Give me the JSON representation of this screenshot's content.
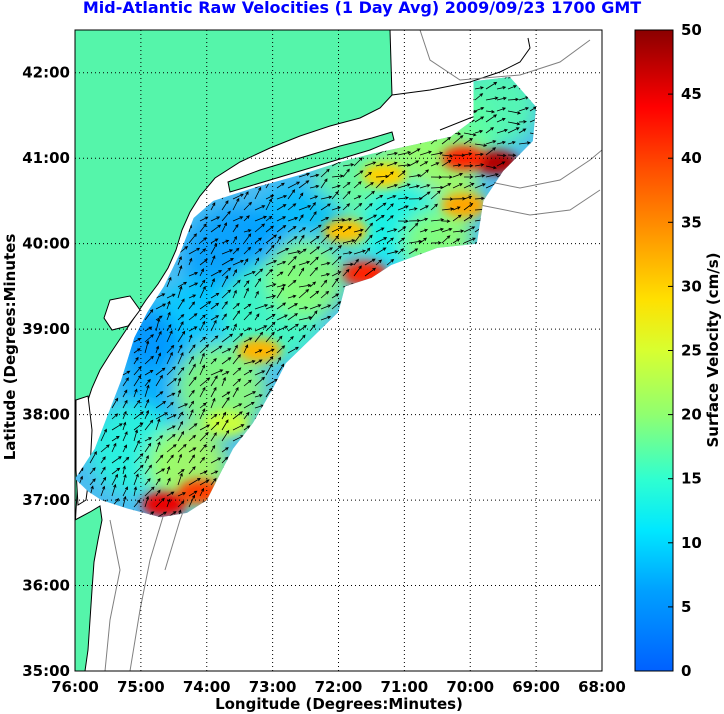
{
  "title": "Mid-Atlantic Raw Velocities (1 Day Avg) 2009/09/23 1700 GMT",
  "map": {
    "xlabel": "Longitude (Degrees:Minutes)",
    "ylabel": "Latitude (Degrees:Minutes",
    "x_ticks": [
      "76:00",
      "75:00",
      "74:00",
      "73:00",
      "72:00",
      "71:00",
      "70:00",
      "69:00",
      "68:00"
    ],
    "y_ticks": [
      "42:00",
      "41:00",
      "40:00",
      "39:00",
      "38:00",
      "37:00",
      "36:00",
      "35:00"
    ],
    "x_range_deg_west": [
      76,
      68
    ],
    "y_range_deg_north": [
      35,
      42.5
    ],
    "grid": "dotted",
    "land_color": "#55f5aa",
    "coast_color": "#000000",
    "bathymetry_color": "#808080"
  },
  "colorbar": {
    "label": "Surface Velocity (cm/s)",
    "ticks": [
      "50",
      "45",
      "40",
      "35",
      "30",
      "25",
      "20",
      "15",
      "10",
      "5",
      "0"
    ],
    "range": [
      0,
      50
    ],
    "colormap": "jet"
  },
  "hotspots": [
    {
      "lon": -69.6,
      "lat": 40.95,
      "speed": 48
    },
    {
      "lon": -70.1,
      "lat": 41.0,
      "speed": 42
    },
    {
      "lon": -71.6,
      "lat": 39.65,
      "speed": 42
    },
    {
      "lon": -74.65,
      "lat": 36.95,
      "speed": 45
    },
    {
      "lon": -74.1,
      "lat": 37.1,
      "speed": 40
    },
    {
      "lon": -73.2,
      "lat": 38.75,
      "speed": 32
    },
    {
      "lon": -71.9,
      "lat": 40.15,
      "speed": 31
    },
    {
      "lon": -70.1,
      "lat": 40.45,
      "speed": 33
    },
    {
      "lon": -71.3,
      "lat": 40.8,
      "speed": 30
    },
    {
      "lon": -73.7,
      "lat": 37.9,
      "speed": 24
    }
  ]
}
